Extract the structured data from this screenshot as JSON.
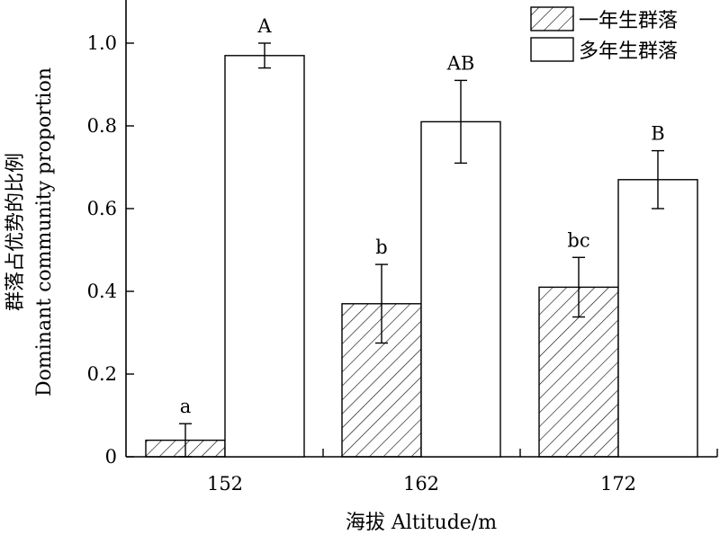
{
  "chart_data": {
    "type": "bar",
    "categories": [
      "152",
      "162",
      "172"
    ],
    "series": [
      {
        "name": "一年生群落",
        "pattern": "hatched",
        "values": [
          0.04,
          0.37,
          0.41
        ],
        "errors": [
          0.04,
          0.095,
          0.072
        ],
        "letters": [
          "a",
          "b",
          "bc"
        ]
      },
      {
        "name": "多年生群落",
        "pattern": "open",
        "values": [
          0.97,
          0.81,
          0.67
        ],
        "errors": [
          0.03,
          0.1,
          0.07
        ],
        "letters": [
          "A",
          "AB",
          "B"
        ]
      }
    ],
    "xlabel": "海拔 Altitude/m",
    "ylabel_cn": "群落占优势的比例",
    "ylabel_en": "Dominant community proportion",
    "ylim": [
      0,
      1.1
    ],
    "yticks": [
      "0",
      "0.2",
      "0.4",
      "0.6",
      "0.8",
      "1.0"
    ],
    "ytick_values": [
      0,
      0.2,
      0.4,
      0.6,
      0.8,
      1.0
    ],
    "grid": false,
    "legend_position": "top-right",
    "colors": {
      "bar_stroke": "#000000",
      "bar_fill": "#ffffff",
      "hatch": "#000000"
    }
  }
}
